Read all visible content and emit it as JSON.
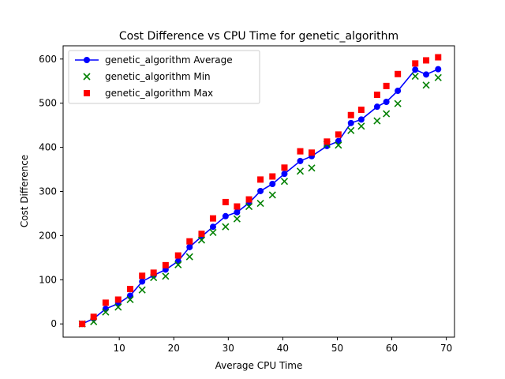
{
  "chart_data": {
    "type": "line",
    "title": "Cost Difference vs CPU Time for genetic_algorithm",
    "xlabel": "Average CPU Time",
    "ylabel": "Cost Difference",
    "xlim": [
      -0.3,
      71.5
    ],
    "ylim": [
      -30,
      630
    ],
    "xticks": [
      10,
      20,
      30,
      40,
      50,
      60,
      70
    ],
    "yticks": [
      0,
      100,
      200,
      300,
      400,
      500,
      600
    ],
    "grid": false,
    "legend_position": "top-left",
    "x": [
      3.2,
      5.3,
      7.5,
      9.8,
      12.0,
      14.2,
      16.3,
      18.5,
      20.8,
      22.9,
      25.1,
      27.2,
      29.5,
      31.6,
      33.8,
      35.9,
      38.1,
      40.3,
      43.2,
      45.3,
      48.1,
      50.2,
      52.5,
      54.4,
      57.3,
      59.0,
      61.1,
      64.3,
      66.3,
      68.5
    ],
    "series": [
      {
        "name": "genetic_algorithm Average",
        "style": "line-marker-circle",
        "color": "#0000ff",
        "values": [
          0,
          12,
          34,
          46,
          64,
          96,
          110,
          123,
          142,
          174,
          198,
          220,
          244,
          253,
          274,
          301,
          317,
          340,
          369,
          380,
          403,
          414,
          455,
          463,
          492,
          503,
          528,
          576,
          565,
          577
        ]
      },
      {
        "name": "genetic_algorithm Min",
        "style": "marker-x",
        "color": "#008000",
        "values": [
          0,
          5,
          27,
          38,
          55,
          77,
          105,
          108,
          134,
          152,
          190,
          207,
          220,
          238,
          266,
          273,
          292,
          323,
          346,
          353,
          407,
          405,
          438,
          448,
          460,
          476,
          499,
          561,
          541,
          558
        ]
      },
      {
        "name": "genetic_algorithm Max",
        "style": "marker-square",
        "color": "#ff0000",
        "values": [
          0,
          16,
          48,
          55,
          79,
          109,
          116,
          133,
          155,
          187,
          204,
          239,
          276,
          266,
          282,
          327,
          334,
          354,
          391,
          388,
          413,
          429,
          473,
          485,
          519,
          539,
          566,
          590,
          597,
          604
        ]
      }
    ]
  }
}
